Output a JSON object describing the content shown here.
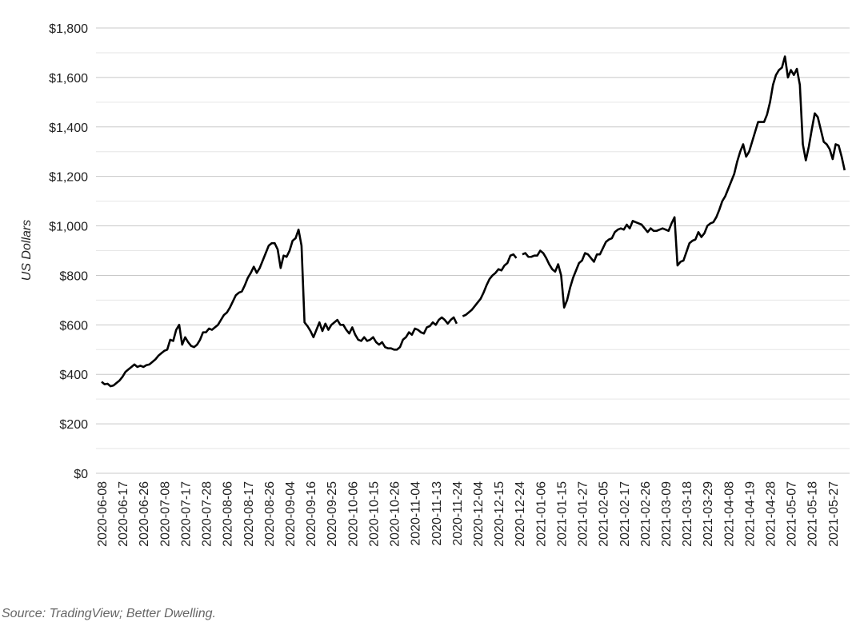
{
  "chart_data": {
    "type": "line",
    "y_label": "US Dollars",
    "source": "Source: TradingView; Better Dwelling.",
    "color": "#000000",
    "grid": true,
    "ylim": [
      0,
      1800
    ],
    "yticks": [
      {
        "value": 0,
        "label": "$0"
      },
      {
        "value": 200,
        "label": "$200"
      },
      {
        "value": 400,
        "label": "$400"
      },
      {
        "value": 600,
        "label": "$600"
      },
      {
        "value": 800,
        "label": "$800"
      },
      {
        "value": 1000,
        "label": "$1,000"
      },
      {
        "value": 1200,
        "label": "$1,200"
      },
      {
        "value": 1400,
        "label": "$1,400"
      },
      {
        "value": 1600,
        "label": "$1,600"
      },
      {
        "value": 1800,
        "label": "$1,800"
      }
    ],
    "y_minor_ticks": [
      100,
      300,
      500,
      700,
      900,
      1100,
      1300,
      1500,
      1700
    ],
    "categories": [
      "2020-06-08",
      null,
      null,
      null,
      null,
      null,
      null,
      "2020-06-17",
      null,
      null,
      null,
      null,
      null,
      null,
      "2020-06-26",
      null,
      null,
      null,
      null,
      null,
      null,
      "2020-07-08",
      null,
      null,
      null,
      null,
      null,
      null,
      "2020-07-17",
      null,
      null,
      null,
      null,
      null,
      null,
      "2020-07-28",
      null,
      null,
      null,
      null,
      null,
      null,
      "2020-08-06",
      null,
      null,
      null,
      null,
      null,
      null,
      "2020-08-17",
      null,
      null,
      null,
      null,
      null,
      null,
      "2020-08-26",
      null,
      null,
      null,
      null,
      null,
      null,
      "2020-09-04",
      null,
      null,
      null,
      null,
      null,
      null,
      "2020-09-16",
      null,
      null,
      null,
      null,
      null,
      null,
      "2020-09-25",
      null,
      null,
      null,
      null,
      null,
      null,
      "2020-10-06",
      null,
      null,
      null,
      null,
      null,
      null,
      "2020-10-15",
      null,
      null,
      null,
      null,
      null,
      null,
      "2020-10-26",
      null,
      null,
      null,
      null,
      null,
      null,
      "2020-11-04",
      null,
      null,
      null,
      null,
      null,
      null,
      "2020-11-13",
      null,
      null,
      null,
      null,
      null,
      null,
      "2020-11-24",
      null,
      null,
      null,
      null,
      null,
      null,
      "2020-12-04",
      null,
      null,
      null,
      null,
      null,
      null,
      "2020-12-15",
      null,
      null,
      null,
      null,
      null,
      null,
      "2020-12-24",
      null,
      null,
      null,
      null,
      null,
      null,
      "2021-01-06",
      null,
      null,
      null,
      null,
      null,
      null,
      "2021-01-15",
      null,
      null,
      null,
      null,
      null,
      null,
      "2021-01-27",
      null,
      null,
      null,
      null,
      null,
      null,
      "2021-02-05",
      null,
      null,
      null,
      null,
      null,
      null,
      "2021-02-17",
      null,
      null,
      null,
      null,
      null,
      null,
      "2021-02-26",
      null,
      null,
      null,
      null,
      null,
      null,
      "2021-03-09",
      null,
      null,
      null,
      null,
      null,
      null,
      "2021-03-18",
      null,
      null,
      null,
      null,
      null,
      null,
      "2021-03-29",
      null,
      null,
      null,
      null,
      null,
      null,
      "2021-04-08",
      null,
      null,
      null,
      null,
      null,
      null,
      "2021-04-19",
      null,
      null,
      null,
      null,
      null,
      null,
      "2021-04-28",
      null,
      null,
      null,
      null,
      null,
      null,
      "2021-05-07",
      null,
      null,
      null,
      null,
      null,
      null,
      "2021-05-18",
      null,
      null,
      null,
      null,
      null,
      null,
      "2021-05-27",
      null,
      null,
      null,
      null
    ],
    "values": [
      370,
      360,
      362,
      352,
      355,
      365,
      375,
      390,
      410,
      420,
      430,
      440,
      430,
      435,
      430,
      437,
      440,
      450,
      460,
      475,
      485,
      495,
      500,
      540,
      535,
      580,
      600,
      520,
      550,
      530,
      515,
      510,
      520,
      540,
      570,
      570,
      585,
      580,
      590,
      600,
      620,
      640,
      650,
      670,
      695,
      720,
      730,
      735,
      760,
      790,
      810,
      835,
      810,
      830,
      860,
      890,
      920,
      930,
      930,
      905,
      830,
      880,
      875,
      900,
      940,
      950,
      985,
      920,
      610,
      595,
      575,
      550,
      580,
      610,
      575,
      605,
      580,
      600,
      610,
      620,
      600,
      600,
      580,
      565,
      590,
      560,
      540,
      535,
      550,
      535,
      540,
      550,
      530,
      520,
      530,
      510,
      505,
      505,
      500,
      500,
      510,
      540,
      550,
      570,
      560,
      585,
      580,
      570,
      565,
      590,
      595,
      610,
      600,
      620,
      630,
      620,
      605,
      620,
      630,
      605,
      null,
      635,
      640,
      650,
      660,
      675,
      690,
      705,
      730,
      760,
      785,
      800,
      810,
      825,
      820,
      840,
      850,
      880,
      885,
      870,
      null,
      885,
      890,
      875,
      875,
      880,
      880,
      900,
      890,
      870,
      845,
      825,
      815,
      845,
      800,
      670,
      700,
      750,
      790,
      820,
      850,
      860,
      890,
      885,
      870,
      855,
      885,
      885,
      910,
      935,
      945,
      950,
      975,
      985,
      990,
      985,
      1005,
      990,
      1020,
      1015,
      1010,
      1005,
      990,
      975,
      990,
      980,
      980,
      985,
      990,
      985,
      980,
      1010,
      1035,
      840,
      855,
      860,
      895,
      930,
      940,
      945,
      975,
      955,
      970,
      1000,
      1010,
      1015,
      1035,
      1065,
      1100,
      1120,
      1150,
      1180,
      1210,
      1260,
      1300,
      1330,
      1280,
      1300,
      1340,
      1380,
      1420,
      1420,
      1420,
      1450,
      1500,
      1570,
      1610,
      1630,
      1640,
      1685,
      1600,
      1630,
      1610,
      1635,
      1570,
      1330,
      1265,
      1320,
      1390,
      1455,
      1440,
      1390,
      1340,
      1330,
      1310,
      1270,
      1330,
      1325,
      1280,
      1225
    ]
  }
}
